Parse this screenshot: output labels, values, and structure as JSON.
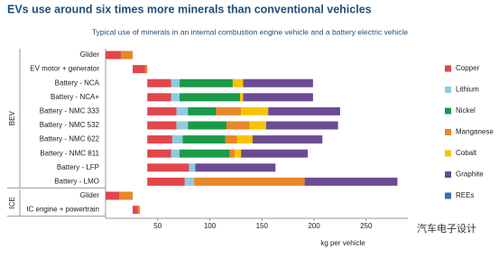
{
  "chart_data": {
    "type": "stacked-bar-horizontal",
    "title": "EVs use around six times more minerals than conventional vehicles",
    "subtitle": "Typical use of minerals in an internal combustion engine vehicle and a battery electric vehicle",
    "x_label": "kg per vehicle",
    "watermark": "汽车电子设计",
    "categories": [
      "Glider",
      "EV motor + generator",
      "Battery - NCA",
      "Battery - NCA+",
      "Battery - NMC 333",
      "Battery - NMC 532",
      "Battery - NMC 622",
      "Battery - NMC 811",
      "Battery - LFP",
      "Battery - LMO",
      "Glider",
      "IC engine + powertrain"
    ],
    "groups": [
      {
        "name": "BEV",
        "rows": [
          0,
          9
        ]
      },
      {
        "name": "ICE",
        "rows": [
          10,
          11
        ]
      }
    ],
    "series": [
      {
        "name": "Copper",
        "color": "#e0464b",
        "values": [
          15,
          12,
          23,
          23,
          28,
          28,
          24,
          23,
          40,
          36,
          13,
          5
        ]
      },
      {
        "name": "Lithium",
        "color": "#8fcbe0",
        "values": [
          null,
          null,
          8,
          8,
          11,
          11,
          10,
          8,
          6,
          9,
          null,
          null
        ]
      },
      {
        "name": "Nickel",
        "color": "#1b9a4a",
        "values": [
          null,
          null,
          51,
          58,
          27,
          37,
          41,
          48,
          null,
          null,
          null,
          null
        ]
      },
      {
        "name": "Manganese",
        "color": "#e8862a",
        "values": [
          11,
          2,
          null,
          null,
          24,
          22,
          11,
          5,
          null,
          106,
          13,
          2
        ]
      },
      {
        "name": "Cobalt",
        "color": "#f6c400",
        "values": [
          null,
          null,
          10,
          3,
          26,
          16,
          15,
          6,
          null,
          null,
          null,
          null
        ]
      },
      {
        "name": "Graphite",
        "color": "#6b4c93",
        "values": [
          null,
          null,
          67,
          67,
          69,
          69,
          67,
          64,
          77,
          89,
          null,
          null
        ]
      },
      {
        "name": "REEs",
        "color": "#3a6fb0",
        "values": [
          null,
          null,
          null,
          null,
          null,
          null,
          null,
          null,
          null,
          null,
          null,
          null
        ]
      }
    ],
    "xlim": [
      0,
      290
    ],
    "xticks": [
      50,
      100,
      150,
      200,
      250
    ]
  }
}
